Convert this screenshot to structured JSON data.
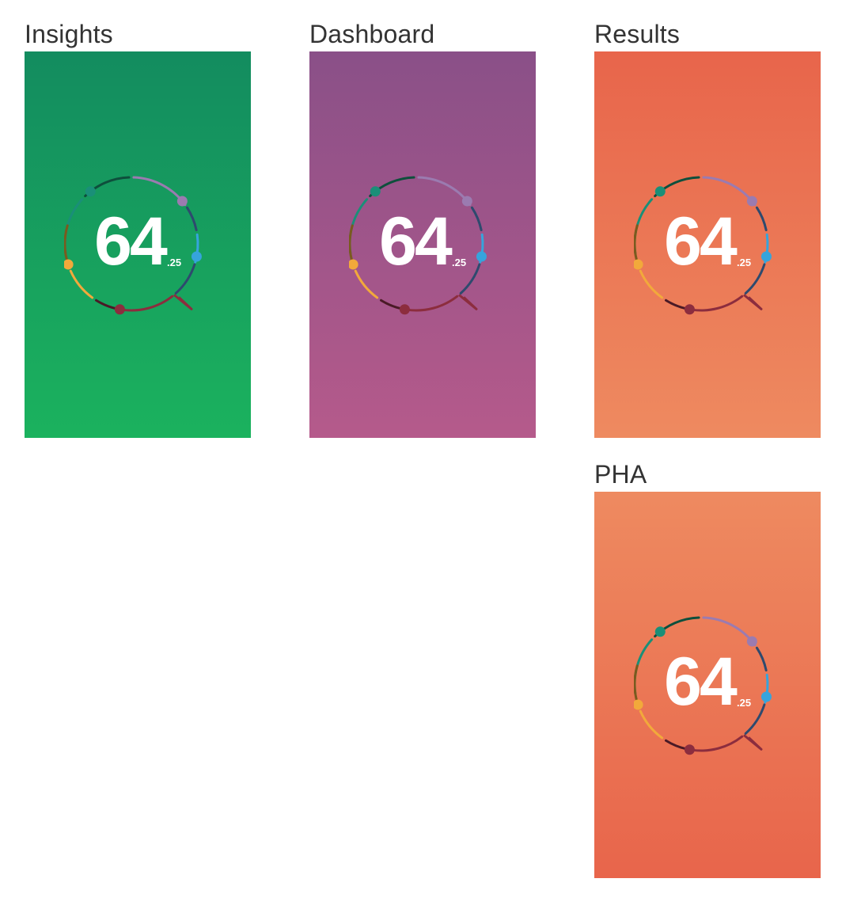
{
  "tiles": [
    {
      "title": "Insights",
      "score_main": "64",
      "score_decimal": ".25",
      "gradient_top": "#138c5f",
      "gradient_bottom": "#1bb25e"
    },
    {
      "title": "Dashboard",
      "score_main": "64",
      "score_decimal": ".25",
      "gradient_top": "#8a5088",
      "gradient_bottom": "#b55a8b"
    },
    {
      "title": "Results",
      "score_main": "64",
      "score_decimal": ".25",
      "gradient_top": "#e8654b",
      "gradient_bottom": "#ee8a60"
    },
    {
      "title": "PHA",
      "score_main": "64",
      "score_decimal": ".25",
      "gradient_top": "#ee8a60",
      "gradient_bottom": "#e8654b"
    }
  ],
  "ring_colors": {
    "teal": "#1a8f78",
    "dark_green": "#0e4f3c",
    "lavender": "#9b7bb0",
    "navy": "#2e4a6e",
    "blue": "#36a4dc",
    "crimson": "#8c2d3e",
    "dark_maroon": "#4a1a26",
    "amber": "#f2a93b",
    "brown": "#7a5a1e"
  }
}
